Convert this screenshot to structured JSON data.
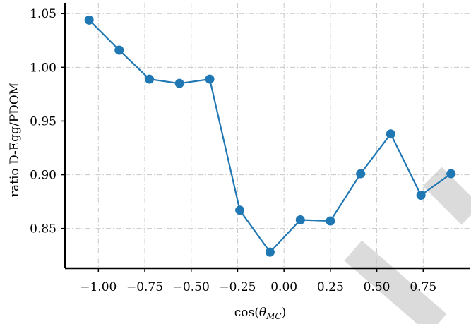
{
  "chart_data": {
    "type": "line",
    "title": "",
    "xlabel": "cos(θ_MC)",
    "xlabel_parts": {
      "prefix": "cos(",
      "symbol": "θ",
      "subscript": "MC",
      "suffix": ")"
    },
    "ylabel": "ratio D-Egg/PDOM",
    "xlim": [
      -1.18,
      1.0
    ],
    "ylim": [
      0.813,
      1.06
    ],
    "x_ticks": [
      -1.0,
      -0.75,
      -0.5,
      -0.25,
      0.0,
      0.25,
      0.5,
      0.75
    ],
    "x_tick_labels": [
      "−1.00",
      "−0.75",
      "−0.50",
      "−0.25",
      "0.00",
      "0.25",
      "0.50",
      "0.75"
    ],
    "y_ticks": [
      0.85,
      0.9,
      0.95,
      1.0,
      1.05
    ],
    "y_tick_labels": [
      "0.85",
      "0.90",
      "0.95",
      "1.00",
      "1.05"
    ],
    "grid": true,
    "series": [
      {
        "color": "#1f77b4",
        "marker": "circle",
        "x": [
          -1.05,
          -0.888,
          -0.725,
          -0.563,
          -0.4,
          -0.238,
          -0.075,
          0.088,
          0.25,
          0.413,
          0.575,
          0.738,
          0.9
        ],
        "y": [
          1.044,
          1.016,
          0.989,
          0.985,
          0.989,
          0.867,
          0.828,
          0.858,
          0.857,
          0.901,
          0.938,
          0.881,
          0.901
        ]
      }
    ]
  },
  "watermark_color": "#d9d9d9"
}
